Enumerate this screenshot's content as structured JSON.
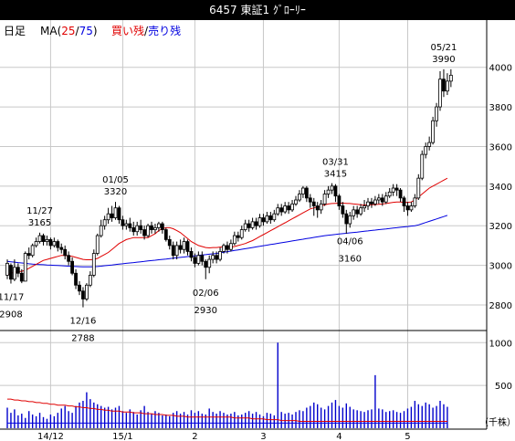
{
  "title_bar": {
    "text": "6457 東証1 ｸﾞﾛｰﾘｰ"
  },
  "legend": {
    "period": "日足",
    "ma_label": "MA(",
    "ma_short": "25",
    "ma_sep": "/",
    "ma_long": "75",
    "ma_close": ")",
    "buy_label": "買い残",
    "slash": "/",
    "sell_label": "売り残"
  },
  "colors": {
    "background": "#ffffff",
    "grid": "#c8c8c8",
    "candle": "#000000",
    "ma_short": "#e00000",
    "ma_long": "#0000e0",
    "volume": "#0000cc",
    "buy_remaining": "#e00000",
    "sell_remaining": "#0000e0",
    "title_bar": "#000000"
  },
  "chart_data": {
    "type": "candlestick",
    "price_axis": {
      "ticks": [
        4000,
        3800,
        3600,
        3400,
        3200,
        3000,
        2800
      ],
      "ylim": [
        2680,
        4100
      ]
    },
    "volume_axis": {
      "ticks": [
        1000,
        500
      ],
      "ylim": [
        0,
        1120
      ],
      "unit_label": "（千株）"
    },
    "x_labels": [
      {
        "label": "14/12",
        "index": 12
      },
      {
        "label": "15/1",
        "index": 32
      },
      {
        "label": "2",
        "index": 52
      },
      {
        "label": "3",
        "index": 71
      },
      {
        "label": "4",
        "index": 92
      },
      {
        "label": "5",
        "index": 111
      }
    ],
    "annotations": [
      {
        "date": "11/17",
        "value": "2908",
        "index": 1,
        "position": "below"
      },
      {
        "date": "11/27",
        "value": "3165",
        "index": 9,
        "position": "above"
      },
      {
        "date": "12/16",
        "value": "2788",
        "index": 21,
        "position": "below"
      },
      {
        "date": "01/05",
        "value": "3320",
        "index": 30,
        "position": "above"
      },
      {
        "date": "02/06",
        "value": "2930",
        "index": 55,
        "position": "below"
      },
      {
        "date": "03/31",
        "value": "3415",
        "index": 91,
        "position": "above"
      },
      {
        "date": "04/06",
        "value": "3160",
        "index": 95,
        "position": "below"
      },
      {
        "date": "05/21",
        "value": "3990",
        "index": 121,
        "position": "above"
      }
    ],
    "candles": [
      [
        2950,
        3010,
        3030,
        2930
      ],
      [
        3000,
        2930,
        3010,
        2908
      ],
      [
        2930,
        2990,
        3030,
        2920
      ],
      [
        2990,
        2960,
        3010,
        2940
      ],
      [
        2960,
        2920,
        2980,
        2910
      ],
      [
        2920,
        3060,
        3070,
        2920
      ],
      [
        3060,
        3050,
        3090,
        3030
      ],
      [
        3050,
        3100,
        3110,
        3040
      ],
      [
        3100,
        3120,
        3140,
        3090
      ],
      [
        3120,
        3150,
        3165,
        3110
      ],
      [
        3150,
        3120,
        3160,
        3100
      ],
      [
        3120,
        3130,
        3150,
        3100
      ],
      [
        3130,
        3100,
        3140,
        3080
      ],
      [
        3100,
        3120,
        3140,
        3090
      ],
      [
        3120,
        3090,
        3130,
        3070
      ],
      [
        3090,
        3080,
        3110,
        3060
      ],
      [
        3080,
        3050,
        3100,
        3030
      ],
      [
        3050,
        3020,
        3070,
        3000
      ],
      [
        3020,
        2960,
        3040,
        2950
      ],
      [
        2960,
        2900,
        2980,
        2880
      ],
      [
        2900,
        2870,
        2920,
        2850
      ],
      [
        2870,
        2830,
        2890,
        2788
      ],
      [
        2830,
        2900,
        2910,
        2820
      ],
      [
        2900,
        2950,
        2970,
        2890
      ],
      [
        2950,
        3060,
        3080,
        2940
      ],
      [
        3060,
        3150,
        3160,
        3050
      ],
      [
        3150,
        3200,
        3230,
        3140
      ],
      [
        3200,
        3230,
        3250,
        3180
      ],
      [
        3230,
        3260,
        3290,
        3210
      ],
      [
        3260,
        3240,
        3300,
        3220
      ],
      [
        3240,
        3290,
        3320,
        3230
      ],
      [
        3290,
        3230,
        3300,
        3210
      ],
      [
        3230,
        3200,
        3250,
        3180
      ],
      [
        3200,
        3210,
        3230,
        3180
      ],
      [
        3210,
        3190,
        3240,
        3170
      ],
      [
        3190,
        3170,
        3220,
        3150
      ],
      [
        3170,
        3200,
        3220,
        3150
      ],
      [
        3200,
        3180,
        3230,
        3160
      ],
      [
        3180,
        3150,
        3200,
        3130
      ],
      [
        3150,
        3200,
        3210,
        3140
      ],
      [
        3200,
        3180,
        3220,
        3160
      ],
      [
        3180,
        3190,
        3210,
        3160
      ],
      [
        3190,
        3210,
        3220,
        3170
      ],
      [
        3210,
        3180,
        3220,
        3160
      ],
      [
        3180,
        3130,
        3190,
        3120
      ],
      [
        3130,
        3100,
        3150,
        3080
      ],
      [
        3100,
        3050,
        3120,
        3030
      ],
      [
        3050,
        3100,
        3120,
        3030
      ],
      [
        3100,
        3080,
        3130,
        3060
      ],
      [
        3080,
        3120,
        3140,
        3060
      ],
      [
        3120,
        3070,
        3130,
        3050
      ],
      [
        3070,
        3040,
        3090,
        3020
      ],
      [
        3040,
        3010,
        3060,
        2990
      ],
      [
        3010,
        3050,
        3070,
        3000
      ],
      [
        3050,
        3020,
        3070,
        3000
      ],
      [
        3020,
        2990,
        3030,
        2930
      ],
      [
        2990,
        3030,
        3050,
        2960
      ],
      [
        3030,
        3050,
        3070,
        3010
      ],
      [
        3050,
        3030,
        3070,
        3010
      ],
      [
        3030,
        3070,
        3090,
        3020
      ],
      [
        3070,
        3100,
        3110,
        3060
      ],
      [
        3100,
        3080,
        3120,
        3060
      ],
      [
        3080,
        3110,
        3130,
        3070
      ],
      [
        3110,
        3150,
        3170,
        3100
      ],
      [
        3150,
        3140,
        3170,
        3120
      ],
      [
        3140,
        3180,
        3200,
        3130
      ],
      [
        3180,
        3210,
        3230,
        3170
      ],
      [
        3210,
        3190,
        3230,
        3170
      ],
      [
        3190,
        3220,
        3240,
        3180
      ],
      [
        3220,
        3200,
        3240,
        3180
      ],
      [
        3200,
        3240,
        3260,
        3190
      ],
      [
        3240,
        3220,
        3260,
        3200
      ],
      [
        3220,
        3250,
        3270,
        3210
      ],
      [
        3250,
        3230,
        3270,
        3210
      ],
      [
        3230,
        3260,
        3280,
        3220
      ],
      [
        3260,
        3290,
        3310,
        3250
      ],
      [
        3290,
        3270,
        3310,
        3250
      ],
      [
        3270,
        3300,
        3320,
        3260
      ],
      [
        3300,
        3280,
        3320,
        3260
      ],
      [
        3280,
        3310,
        3330,
        3270
      ],
      [
        3310,
        3330,
        3350,
        3300
      ],
      [
        3330,
        3360,
        3380,
        3320
      ],
      [
        3360,
        3390,
        3400,
        3340
      ],
      [
        3390,
        3340,
        3400,
        3320
      ],
      [
        3340,
        3320,
        3360,
        3290
      ],
      [
        3320,
        3300,
        3340,
        3250
      ],
      [
        3300,
        3280,
        3320,
        3240
      ],
      [
        3280,
        3310,
        3330,
        3260
      ],
      [
        3310,
        3360,
        3380,
        3300
      ],
      [
        3360,
        3380,
        3400,
        3340
      ],
      [
        3380,
        3400,
        3415,
        3360
      ],
      [
        3400,
        3350,
        3410,
        3320
      ],
      [
        3350,
        3300,
        3360,
        3280
      ],
      [
        3300,
        3260,
        3320,
        3240
      ],
      [
        3260,
        3210,
        3280,
        3160
      ],
      [
        3210,
        3250,
        3270,
        3190
      ],
      [
        3250,
        3280,
        3300,
        3230
      ],
      [
        3280,
        3260,
        3300,
        3240
      ],
      [
        3260,
        3290,
        3310,
        3250
      ],
      [
        3290,
        3300,
        3330,
        3270
      ],
      [
        3300,
        3320,
        3340,
        3280
      ],
      [
        3320,
        3310,
        3340,
        3290
      ],
      [
        3310,
        3330,
        3350,
        3300
      ],
      [
        3330,
        3340,
        3360,
        3310
      ],
      [
        3340,
        3320,
        3360,
        3300
      ],
      [
        3320,
        3350,
        3370,
        3310
      ],
      [
        3350,
        3370,
        3390,
        3340
      ],
      [
        3370,
        3390,
        3410,
        3350
      ],
      [
        3390,
        3380,
        3410,
        3350
      ],
      [
        3380,
        3340,
        3390,
        3320
      ],
      [
        3340,
        3300,
        3350,
        3270
      ],
      [
        3300,
        3280,
        3320,
        3250
      ],
      [
        3280,
        3300,
        3320,
        3270
      ],
      [
        3300,
        3340,
        3360,
        3290
      ],
      [
        3340,
        3440,
        3460,
        3330
      ],
      [
        3440,
        3560,
        3580,
        3430
      ],
      [
        3560,
        3600,
        3620,
        3540
      ],
      [
        3600,
        3620,
        3650,
        3580
      ],
      [
        3620,
        3730,
        3750,
        3610
      ],
      [
        3730,
        3800,
        3820,
        3700
      ],
      [
        3800,
        3940,
        3980,
        3780
      ],
      [
        3940,
        3880,
        3990,
        3850
      ],
      [
        3880,
        3930,
        3970,
        3860
      ],
      [
        3930,
        3960,
        3990,
        3900
      ]
    ],
    "volume": [
      240,
      180,
      220,
      150,
      170,
      120,
      200,
      160,
      140,
      180,
      130,
      110,
      160,
      140,
      180,
      230,
      260,
      200,
      180,
      260,
      300,
      320,
      420,
      340,
      300,
      280,
      260,
      240,
      250,
      220,
      240,
      260,
      200,
      180,
      220,
      190,
      160,
      210,
      260,
      190,
      170,
      200,
      180,
      150,
      160,
      140,
      180,
      200,
      170,
      190,
      160,
      210,
      180,
      200,
      170,
      160,
      230,
      190,
      170,
      200,
      180,
      160,
      170,
      190,
      150,
      160,
      180,
      200,
      170,
      190,
      160,
      140,
      180,
      170,
      150,
      160,
      190,
      170,
      180,
      160,
      190,
      210,
      200,
      240,
      260,
      300,
      280,
      240,
      220,
      260,
      300,
      330,
      260,
      240,
      290,
      250,
      220,
      210,
      200,
      190,
      210,
      220,
      200,
      230,
      220,
      190,
      200,
      210,
      190,
      180,
      200,
      230,
      250,
      320,
      280,
      260,
      300,
      280,
      240,
      260,
      320,
      280,
      250
    ],
    "volume_spikes": [
      {
        "index": 75,
        "value": 1000
      },
      {
        "index": 102,
        "value": 620
      }
    ],
    "ma_short": [
      2950,
      2960,
      2965,
      2968,
      2970,
      2975,
      2985,
      2995,
      3005,
      3015,
      3025,
      3030,
      3035,
      3040,
      3045,
      3050,
      3050,
      3048,
      3045,
      3040,
      3035,
      3030,
      3028,
      3028,
      3030,
      3035,
      3045,
      3055,
      3065,
      3080,
      3095,
      3110,
      3120,
      3130,
      3135,
      3140,
      3140,
      3140,
      3140,
      3140,
      3150,
      3160,
      3175,
      3185,
      3190,
      3190,
      3185,
      3175,
      3165,
      3150,
      3135,
      3120,
      3110,
      3100,
      3095,
      3090,
      3088,
      3090,
      3090,
      3092,
      3092,
      3092,
      3092,
      3095,
      3100,
      3105,
      3110,
      3118,
      3125,
      3135,
      3145,
      3155,
      3165,
      3175,
      3185,
      3195,
      3205,
      3215,
      3225,
      3235,
      3245,
      3255,
      3265,
      3275,
      3285,
      3290,
      3295,
      3300,
      3305,
      3310,
      3312,
      3313,
      3314,
      3314,
      3313,
      3312,
      3310,
      3308,
      3306,
      3305,
      3305,
      3306,
      3307,
      3308,
      3310,
      3312,
      3315,
      3318,
      3320,
      3320,
      3318,
      3318,
      3320,
      3330,
      3345,
      3360,
      3375,
      3390,
      3400,
      3410,
      3420,
      3430,
      3440
    ],
    "ma_long": [
      3020,
      3018,
      3016,
      3014,
      3012,
      3010,
      3008,
      3006,
      3005,
      3004,
      3003,
      3002,
      3001,
      3000,
      2999,
      2998,
      2997,
      2996,
      2995,
      2994,
      2993,
      2992,
      2992,
      2992,
      2993,
      2994,
      2996,
      2998,
      3000,
      3002,
      3004,
      3006,
      3008,
      3010,
      3012,
      3014,
      3016,
      3018,
      3020,
      3022,
      3024,
      3026,
      3028,
      3030,
      3032,
      3034,
      3036,
      3038,
      3040,
      3042,
      3044,
      3046,
      3048,
      3050,
      3052,
      3054,
      3056,
      3058,
      3060,
      3063,
      3066,
      3069,
      3072,
      3075,
      3078,
      3081,
      3084,
      3087,
      3090,
      3093,
      3096,
      3099,
      3102,
      3105,
      3108,
      3111,
      3114,
      3117,
      3120,
      3123,
      3126,
      3129,
      3132,
      3135,
      3138,
      3141,
      3144,
      3147,
      3150,
      3152,
      3154,
      3156,
      3158,
      3160,
      3162,
      3164,
      3166,
      3168,
      3170,
      3172,
      3174,
      3176,
      3178,
      3180,
      3182,
      3184,
      3186,
      3188,
      3190,
      3192,
      3194,
      3196,
      3198,
      3200,
      3204,
      3210,
      3216,
      3222,
      3228,
      3234,
      3240,
      3246,
      3252
    ],
    "buy_remaining": [
      340,
      340,
      330,
      330,
      320,
      320,
      310,
      310,
      300,
      300,
      290,
      290,
      280,
      280,
      270,
      270,
      270,
      260,
      260,
      250,
      250,
      240,
      240,
      230,
      230,
      220,
      220,
      210,
      210,
      200,
      200,
      200,
      190,
      190,
      190,
      180,
      180,
      180,
      170,
      170,
      170,
      160,
      160,
      160,
      150,
      150,
      150,
      140,
      140,
      140,
      130,
      130,
      130,
      130,
      130,
      130,
      130,
      130,
      130,
      130,
      130,
      130,
      130,
      120,
      120,
      120,
      120,
      120,
      110,
      110,
      110,
      110,
      100,
      100,
      100,
      100,
      90,
      90,
      90,
      90,
      90,
      80,
      80,
      80,
      80,
      80,
      80,
      80,
      80,
      80,
      80,
      80,
      80,
      80,
      80,
      80,
      80,
      80,
      80,
      80,
      80,
      80,
      80,
      80,
      80,
      80,
      80,
      80,
      80,
      80,
      80,
      80,
      80,
      80,
      80,
      80,
      80,
      80,
      80,
      80,
      80,
      80,
      80
    ],
    "sell_remaining": [
      60,
      60,
      60,
      60,
      60,
      60,
      60,
      60,
      60,
      60,
      60,
      60,
      60,
      60,
      60,
      60,
      60,
      60,
      60,
      60,
      60,
      60,
      60,
      60,
      60,
      60,
      60,
      60,
      60,
      60,
      60,
      60,
      60,
      60,
      60,
      60,
      60,
      60,
      60,
      60,
      60,
      60,
      60,
      60,
      60,
      60,
      60,
      60,
      60,
      60,
      60,
      60,
      60,
      60,
      60,
      60,
      60,
      60,
      60,
      60,
      60,
      60,
      60,
      60,
      60,
      60,
      60,
      60,
      60,
      60,
      60,
      60,
      60,
      60,
      60,
      60,
      60,
      60,
      60,
      60,
      60,
      60,
      60,
      60,
      60,
      60,
      60,
      60,
      60,
      60,
      60,
      60,
      60,
      60,
      60,
      60,
      60,
      60,
      60,
      60,
      60,
      60,
      60,
      60,
      60,
      60,
      60,
      60,
      60,
      60,
      60,
      60,
      60,
      60,
      60,
      60,
      60,
      60,
      60,
      60,
      60,
      60,
      60
    ]
  }
}
